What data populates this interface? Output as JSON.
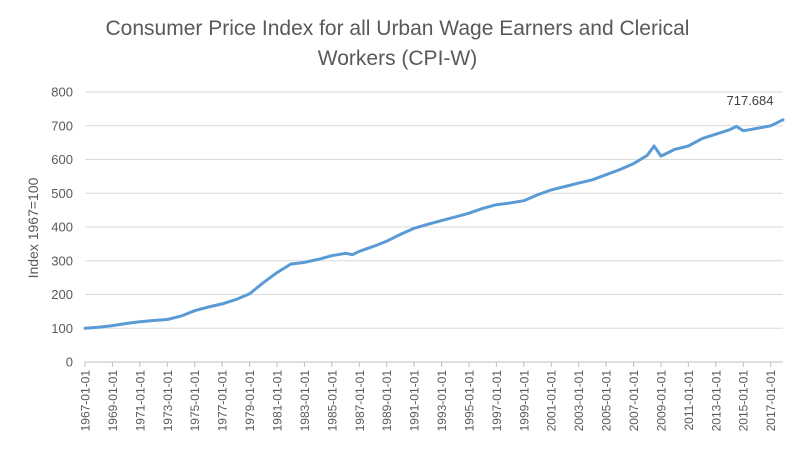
{
  "chart_data": {
    "type": "line",
    "title_line1": "Consumer Price Index for all Urban Wage Earners and Clerical",
    "title_line2": "Workers (CPI-W)",
    "ylabel": "Index 1967=100",
    "xlabel": "",
    "ylim": [
      0,
      800
    ],
    "yticks": [
      0,
      100,
      200,
      300,
      400,
      500,
      600,
      700,
      800
    ],
    "x_tick_labels": [
      "1967-01-01",
      "1969-01-01",
      "1971-01-01",
      "1973-01-01",
      "1975-01-01",
      "1977-01-01",
      "1979-01-01",
      "1981-01-01",
      "1983-01-01",
      "1985-01-01",
      "1987-01-01",
      "1989-01-01",
      "1991-01-01",
      "1993-01-01",
      "1995-01-01",
      "1997-01-01",
      "1999-01-01",
      "2001-01-01",
      "2003-01-01",
      "2005-01-01",
      "2007-01-01",
      "2009-01-01",
      "2011-01-01",
      "2013-01-01",
      "2015-01-01",
      "2017-01-01"
    ],
    "grid": true,
    "legend": "none",
    "line_color": "#5B9BD5",
    "end_label": "717.684",
    "series": [
      {
        "x": [
          1967.0,
          1968.0,
          1969.0,
          1970.0,
          1971.0,
          1972.0,
          1973.0,
          1974.0,
          1975.0,
          1976.0,
          1977.0,
          1978.0,
          1979.0,
          1980.0,
          1981.0,
          1982.0,
          1983.0,
          1984.0,
          1985.0,
          1986.0,
          1986.5,
          1987.0,
          1988.0,
          1989.0,
          1990.0,
          1991.0,
          1992.0,
          1993.0,
          1994.0,
          1995.0,
          1996.0,
          1997.0,
          1998.0,
          1999.0,
          2000.0,
          2001.0,
          2002.0,
          2003.0,
          2004.0,
          2005.0,
          2006.0,
          2007.0,
          2008.0,
          2008.5,
          2009.0,
          2010.0,
          2011.0,
          2012.0,
          2013.0,
          2014.0,
          2014.5,
          2015.0,
          2016.0,
          2017.0,
          2017.9
        ],
        "values": [
          100,
          103,
          108,
          114,
          119,
          123,
          126,
          136,
          152,
          163,
          172,
          185,
          202,
          235,
          265,
          290,
          295,
          304,
          315,
          322,
          318,
          328,
          342,
          358,
          378,
          396,
          408,
          419,
          430,
          441,
          455,
          466,
          471,
          478,
          495,
          510,
          520,
          530,
          540,
          555,
          570,
          588,
          612,
          640,
          610,
          630,
          640,
          662,
          675,
          688,
          698,
          685,
          692,
          700,
          717.684
        ]
      }
    ]
  }
}
